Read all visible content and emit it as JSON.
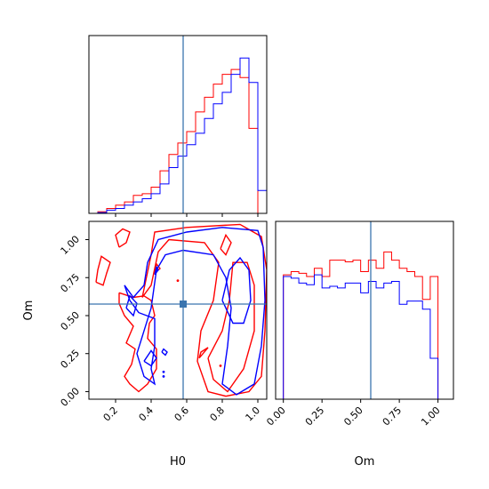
{
  "colors": {
    "series_a": "#ff0000",
    "series_b": "#0000ff",
    "truth": "#3b75af",
    "axis": "#000000"
  },
  "chart_data": {
    "type": "corner",
    "parameters": [
      "H0",
      "Om"
    ],
    "truth": {
      "H0": 0.58,
      "Om": 0.565
    },
    "panels": [
      {
        "id": "hist_H0",
        "type": "histogram",
        "xlim": [
          0.05,
          1.05
        ],
        "bin_edges": [
          0.1,
          0.15,
          0.2,
          0.25,
          0.3,
          0.35,
          0.4,
          0.45,
          0.5,
          0.55,
          0.6,
          0.65,
          0.7,
          0.75,
          0.8,
          0.85,
          0.9,
          0.95,
          1.0,
          1.05
        ],
        "series": [
          {
            "color": "red",
            "counts": [
              0.01,
              0.03,
              0.05,
              0.07,
              0.11,
              0.12,
              0.16,
              0.26,
              0.36,
              0.43,
              0.5,
              0.62,
              0.71,
              0.79,
              0.85,
              0.88,
              0.83,
              0.52,
              0.0
            ]
          },
          {
            "color": "blue",
            "counts": [
              0.005,
              0.02,
              0.03,
              0.05,
              0.07,
              0.09,
              0.12,
              0.18,
              0.28,
              0.35,
              0.42,
              0.49,
              0.58,
              0.67,
              0.74,
              0.85,
              0.95,
              0.8,
              0.14
            ]
          }
        ]
      },
      {
        "id": "hist_Om",
        "type": "histogram",
        "xlim": [
          -0.05,
          1.1
        ],
        "xticks": [
          "0.00",
          "0.25",
          "0.50",
          "0.75",
          "1.00"
        ],
        "xlabel": "Om",
        "bin_edges": [
          0.0,
          0.05,
          0.1,
          0.15,
          0.2,
          0.25,
          0.3,
          0.35,
          0.4,
          0.45,
          0.5,
          0.55,
          0.6,
          0.65,
          0.7,
          0.75,
          0.8,
          0.85,
          0.9,
          0.95,
          1.0
        ],
        "series": [
          {
            "color": "red",
            "counts": [
              0.76,
              0.78,
              0.77,
              0.75,
              0.8,
              0.75,
              0.85,
              0.85,
              0.84,
              0.85,
              0.78,
              0.85,
              0.8,
              0.9,
              0.85,
              0.8,
              0.78,
              0.75,
              0.61,
              0.75
            ]
          },
          {
            "color": "blue",
            "counts": [
              0.75,
              0.74,
              0.71,
              0.7,
              0.76,
              0.68,
              0.69,
              0.68,
              0.71,
              0.71,
              0.65,
              0.72,
              0.68,
              0.71,
              0.72,
              0.58,
              0.6,
              0.6,
              0.55,
              0.25
            ]
          }
        ]
      },
      {
        "id": "contour_H0_Om",
        "type": "contour",
        "xlim": [
          0.05,
          1.05
        ],
        "ylim": [
          -0.05,
          1.12
        ],
        "xticks": [
          "0.2",
          "0.4",
          "0.6",
          "0.8",
          "1.0"
        ],
        "yticks": [
          "0.00",
          "0.25",
          "0.50",
          "0.75",
          "1.00"
        ],
        "xlabel": "H0",
        "ylabel": "Om",
        "series": [
          {
            "color": "red",
            "contours": [
              [
                [
                  0.22,
                  0.95
                ],
                [
                  0.26,
                  0.98
                ],
                [
                  0.28,
                  1.05
                ],
                [
                  0.24,
                  1.07
                ],
                [
                  0.2,
                  1.03
                ],
                [
                  0.22,
                  0.95
                ]
              ],
              [
                [
                  0.09,
                  0.72
                ],
                [
                  0.13,
                  0.7
                ],
                [
                  0.15,
                  0.78
                ],
                [
                  0.17,
                  0.85
                ],
                [
                  0.12,
                  0.89
                ],
                [
                  0.1,
                  0.8
                ],
                [
                  0.09,
                  0.72
                ]
              ],
              [
                [
                  0.22,
                  0.65
                ],
                [
                  0.3,
                  0.62
                ],
                [
                  0.36,
                  0.63
                ],
                [
                  0.4,
                  0.6
                ],
                [
                  0.42,
                  0.5
                ],
                [
                  0.39,
                  0.45
                ],
                [
                  0.38,
                  0.35
                ],
                [
                  0.43,
                  0.28
                ],
                [
                  0.43,
                  0.15
                ],
                [
                  0.38,
                  0.05
                ],
                [
                  0.33,
                  0.0
                ],
                [
                  0.28,
                  0.05
                ],
                [
                  0.25,
                  0.1
                ],
                [
                  0.29,
                  0.18
                ],
                [
                  0.31,
                  0.28
                ],
                [
                  0.26,
                  0.32
                ],
                [
                  0.3,
                  0.43
                ],
                [
                  0.25,
                  0.5
                ],
                [
                  0.22,
                  0.58
                ],
                [
                  0.22,
                  0.65
                ]
              ],
              [
                [
                  0.35,
                  0.62
                ],
                [
                  0.4,
                  0.9
                ],
                [
                  0.42,
                  1.05
                ],
                [
                  0.6,
                  1.08
                ],
                [
                  0.9,
                  1.1
                ],
                [
                  1.02,
                  1.02
                ],
                [
                  1.05,
                  0.8
                ],
                [
                  1.04,
                  0.4
                ],
                [
                  1.02,
                  0.1
                ],
                [
                  0.95,
                  0.0
                ],
                [
                  0.82,
                  -0.03
                ],
                [
                  0.72,
                  0.0
                ],
                [
                  0.66,
                  0.2
                ],
                [
                  0.68,
                  0.4
                ],
                [
                  0.75,
                  0.6
                ],
                [
                  0.78,
                  0.85
                ],
                [
                  0.7,
                  0.98
                ],
                [
                  0.5,
                  1.0
                ],
                [
                  0.44,
                  0.92
                ],
                [
                  0.4,
                  0.7
                ],
                [
                  0.35,
                  0.62
                ]
              ],
              [
                [
                  0.72,
                  0.22
                ],
                [
                  0.75,
                  0.08
                ],
                [
                  0.83,
                  0.0
                ],
                [
                  0.92,
                  0.15
                ],
                [
                  0.98,
                  0.4
                ],
                [
                  0.98,
                  0.7
                ],
                [
                  0.94,
                  0.85
                ],
                [
                  0.86,
                  0.85
                ],
                [
                  0.84,
                  0.6
                ],
                [
                  0.8,
                  0.4
                ],
                [
                  0.72,
                  0.22
                ]
              ],
              [
                [
                  0.79,
                  0.94
                ],
                [
                  0.82,
                  0.9
                ],
                [
                  0.85,
                  0.98
                ],
                [
                  0.82,
                  1.03
                ],
                [
                  0.79,
                  0.94
                ]
              ],
              [
                [
                  0.67,
                  0.22
                ],
                [
                  0.72,
                  0.29
                ],
                [
                  0.68,
                  0.26
                ],
                [
                  0.67,
                  0.22
                ]
              ],
              [
                [
                  0.42,
                  0.78
                ],
                [
                  0.45,
                  0.81
                ],
                [
                  0.43,
                  0.84
                ],
                [
                  0.42,
                  0.78
                ]
              ]
            ],
            "points": [
              [
                0.55,
                0.73
              ],
              [
                0.79,
                0.17
              ]
            ]
          },
          {
            "color": "blue",
            "contours": [
              [
                [
                  0.25,
                  0.7
                ],
                [
                  0.3,
                  0.62
                ],
                [
                  0.36,
                  0.7
                ],
                [
                  0.38,
                  0.85
                ],
                [
                  0.44,
                  1.0
                ],
                [
                  0.6,
                  1.05
                ],
                [
                  0.8,
                  1.08
                ],
                [
                  1.0,
                  1.06
                ],
                [
                  1.03,
                  0.95
                ],
                [
                  1.04,
                  0.6
                ],
                [
                  1.02,
                  0.3
                ],
                [
                  0.98,
                  0.05
                ],
                [
                  0.88,
                  -0.02
                ],
                [
                  0.8,
                  0.05
                ],
                [
                  0.83,
                  0.3
                ],
                [
                  0.85,
                  0.55
                ],
                [
                  0.82,
                  0.75
                ],
                [
                  0.75,
                  0.9
                ],
                [
                  0.58,
                  0.93
                ],
                [
                  0.48,
                  0.9
                ],
                [
                  0.43,
                  0.8
                ],
                [
                  0.4,
                  0.55
                ],
                [
                  0.36,
                  0.4
                ],
                [
                  0.32,
                  0.25
                ],
                [
                  0.36,
                  0.1
                ],
                [
                  0.42,
                  0.05
                ],
                [
                  0.4,
                  0.15
                ],
                [
                  0.42,
                  0.3
                ],
                [
                  0.42,
                  0.48
                ],
                [
                  0.33,
                  0.52
                ],
                [
                  0.28,
                  0.6
                ],
                [
                  0.25,
                  0.7
                ]
              ],
              [
                [
                  0.8,
                  0.6
                ],
                [
                  0.84,
                  0.8
                ],
                [
                  0.9,
                  0.88
                ],
                [
                  0.95,
                  0.8
                ],
                [
                  0.96,
                  0.6
                ],
                [
                  0.92,
                  0.45
                ],
                [
                  0.86,
                  0.45
                ],
                [
                  0.8,
                  0.6
                ]
              ],
              [
                [
                  0.26,
                  0.55
                ],
                [
                  0.3,
                  0.5
                ],
                [
                  0.32,
                  0.58
                ],
                [
                  0.28,
                  0.63
                ],
                [
                  0.26,
                  0.55
                ]
              ],
              [
                [
                  0.36,
                  0.2
                ],
                [
                  0.4,
                  0.17
                ],
                [
                  0.43,
                  0.22
                ],
                [
                  0.4,
                  0.27
                ],
                [
                  0.36,
                  0.2
                ]
              ],
              [
                [
                  0.46,
                  0.26
                ],
                [
                  0.48,
                  0.24
                ],
                [
                  0.49,
                  0.26
                ],
                [
                  0.47,
                  0.28
                ],
                [
                  0.46,
                  0.26
                ]
              ],
              [
                [
                  0.42,
                  0.77
                ],
                [
                  0.44,
                  0.8
                ],
                [
                  0.43,
                  0.82
                ],
                [
                  0.42,
                  0.77
                ]
              ]
            ],
            "points": [
              [
                0.47,
                0.1
              ],
              [
                0.47,
                0.13
              ]
            ]
          }
        ]
      }
    ]
  }
}
